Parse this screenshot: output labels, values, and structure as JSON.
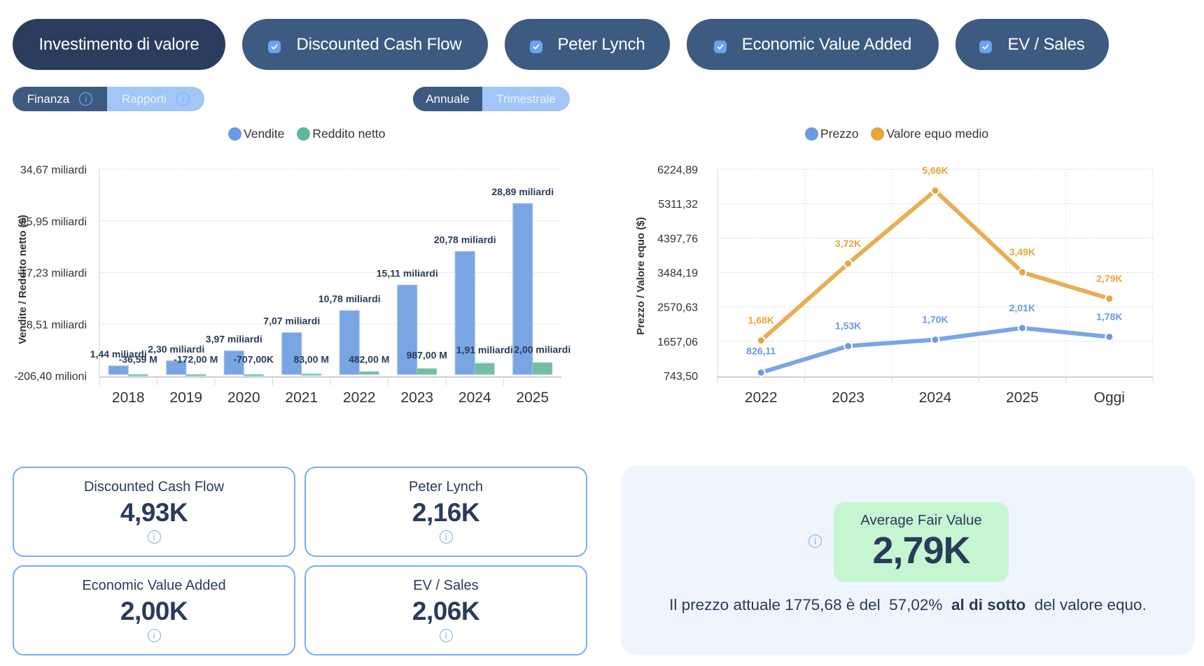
{
  "methods": {
    "primary": "Investimento di valore",
    "items": [
      {
        "label": "Discounted Cash Flow",
        "checked": true
      },
      {
        "label": "Peter Lynch",
        "checked": true
      },
      {
        "label": "Economic Value Added",
        "checked": true
      },
      {
        "label": "EV / Sales",
        "checked": true
      }
    ]
  },
  "toggles": {
    "data_type": {
      "options": [
        "Finanza",
        "Rapporti"
      ],
      "selected": "Finanza",
      "info_icon": "info-icon"
    },
    "period": {
      "options": [
        "Annuale",
        "Trimestrale"
      ],
      "selected": "Annuale"
    }
  },
  "colors": {
    "vendite": "#6b9be3",
    "reddito": "#5db79b",
    "prezzo": "#6b9be3",
    "valore": "#e8a440",
    "pill": "#3d5a80",
    "pill_primary": "#2b3d5e",
    "text": "#2a3b59",
    "card_border": "#7aaef0",
    "summary_bg": "#eef5fd",
    "afv_bg": "#c6f5d2"
  },
  "chart_data": [
    {
      "type": "bar",
      "title": "",
      "legend": [
        "Vendite",
        "Reddito netto"
      ],
      "legend_position": "top-center",
      "xlabel": "",
      "ylabel": "Vendite / Reddito netto ($)",
      "categories": [
        "2018",
        "2019",
        "2020",
        "2021",
        "2022",
        "2023",
        "2024",
        "2025"
      ],
      "series": [
        {
          "name": "Vendite",
          "values": [
            1440000000.0,
            2300000000.0,
            3970000000.0,
            7070000000.0,
            10780000000.0,
            15110000000.0,
            20780000000.0,
            28890000000.0
          ],
          "labels": [
            "1,44 miliardi",
            "2,30 miliardi",
            "3,97 miliardi",
            "7,07 miliardi",
            "10,78 miliardi",
            "15,11 miliardi",
            "20,78 miliardi",
            "28,89 miliardi"
          ]
        },
        {
          "name": "Reddito netto",
          "values": [
            -36590000.0,
            -172000000.0,
            -707000.0,
            83000000.0,
            482000000.0,
            987000000.0,
            1910000000.0,
            2000000000.0
          ],
          "labels": [
            "-36,59 M",
            "-172,00 M",
            "-707,00K",
            "83,00 M",
            "482,00 M",
            "987,00 M",
            "1,91 miliardi",
            "2,00 miliardi"
          ]
        }
      ],
      "ylim": [
        -206400000.0,
        34670000000.0
      ],
      "yticks": [
        {
          "value": -206400000.0,
          "label": "-206,40 milioni"
        },
        {
          "value": 8510000000.0,
          "label": "8,51 miliardi"
        },
        {
          "value": 17230000000.0,
          "label": "17,23 miliardi"
        },
        {
          "value": 25950000000.0,
          "label": "25,95 miliardi"
        },
        {
          "value": 34670000000.0,
          "label": "34,67 miliardi"
        }
      ],
      "grid": true
    },
    {
      "type": "line",
      "title": "",
      "legend": [
        "Prezzo",
        "Valore equo medio"
      ],
      "legend_position": "top-center",
      "xlabel": "",
      "ylabel": "Prezzo / Valore equo ($)",
      "categories": [
        "2022",
        "2023",
        "2024",
        "2025",
        "Oggi"
      ],
      "series": [
        {
          "name": "Prezzo",
          "values": [
            826.11,
            1530,
            1700,
            2010,
            1775.68
          ],
          "labels": [
            "826,11",
            "1,53K",
            "1,70K",
            "2,01K",
            "1,78K"
          ]
        },
        {
          "name": "Valore equo medio",
          "values": [
            1680,
            3720,
            5660,
            3490,
            2790
          ],
          "labels": [
            "1,68K",
            "3,72K",
            "5,66K",
            "3,49K",
            "2,79K"
          ]
        }
      ],
      "ylim": [
        743.5,
        6224.89
      ],
      "yticks": [
        {
          "value": 743.5,
          "label": "743,50"
        },
        {
          "value": 1657.06,
          "label": "1657,06"
        },
        {
          "value": 2570.63,
          "label": "2570,63"
        },
        {
          "value": 3484.19,
          "label": "3484,19"
        },
        {
          "value": 4397.76,
          "label": "4397,76"
        },
        {
          "value": 5311.32,
          "label": "5311,32"
        },
        {
          "value": 6224.89,
          "label": "6224,89"
        }
      ],
      "grid": true
    }
  ],
  "cards": [
    {
      "title": "Discounted Cash Flow",
      "value": "4,93K"
    },
    {
      "title": "Peter Lynch",
      "value": "2,16K"
    },
    {
      "title": "Economic Value Added",
      "value": "2,00K"
    },
    {
      "title": "EV / Sales",
      "value": "2,06K"
    }
  ],
  "summary": {
    "title": "Average Fair Value",
    "value": "2,79K",
    "sentence_pre": "Il prezzo attuale 1775,68 è del  57,02% ",
    "sentence_bold": " al di sotto ",
    "sentence_post": " del valore equo."
  }
}
